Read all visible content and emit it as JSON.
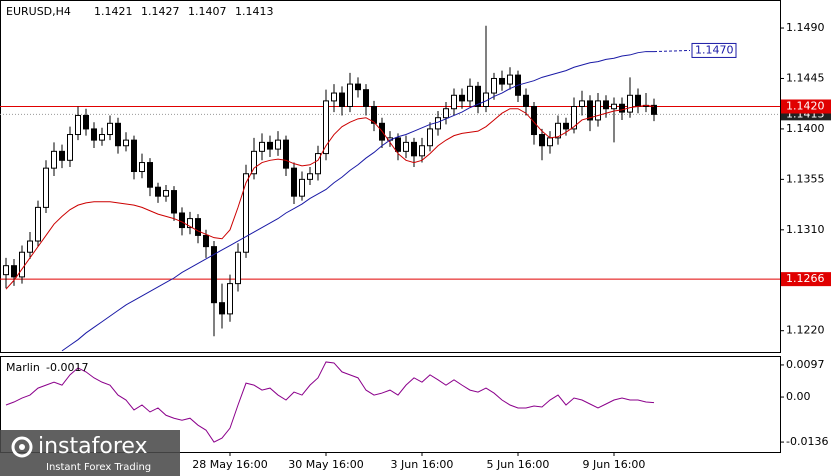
{
  "chart_data": [
    {
      "type": "candlestick",
      "title": "EURUSD,H4",
      "categories": [
        null,
        null,
        null,
        null,
        null,
        null,
        null,
        null,
        null,
        null,
        null,
        null,
        null,
        null,
        null,
        null,
        null,
        null,
        null,
        null,
        null,
        null,
        null,
        null,
        null,
        null,
        null,
        null,
        "28 May 16:00",
        null,
        null,
        null,
        null,
        null,
        null,
        null,
        null,
        null,
        null,
        null,
        "30 May 16:00",
        null,
        null,
        null,
        null,
        null,
        null,
        null,
        null,
        null,
        null,
        null,
        "3 Jun 16:00",
        null,
        null,
        null,
        null,
        null,
        null,
        null,
        null,
        null,
        null,
        null,
        "5 Jun 16:00",
        null,
        null,
        null,
        null,
        null,
        null,
        null,
        null,
        null,
        null,
        null,
        "9 Jun 16:00",
        null,
        null,
        null,
        null,
        null
      ],
      "open": [
        1.127,
        1.1278,
        1.1268,
        1.129,
        1.13,
        1.133,
        1.1365,
        1.138,
        1.1372,
        1.1395,
        1.1412,
        1.14,
        1.139,
        1.1395,
        1.1405,
        1.1385,
        1.139,
        1.1362,
        1.137,
        1.1348,
        1.134,
        1.1345,
        1.1325,
        1.1312,
        1.132,
        1.1305,
        1.1295,
        1.1245,
        1.1235,
        1.1262,
        1.129,
        1.136,
        1.138,
        1.1388,
        1.1382,
        1.139,
        1.1365,
        1.134,
        1.1355,
        1.136,
        1.1378,
        1.1425,
        1.1432,
        1.142,
        1.144,
        1.1435,
        1.142,
        1.1405,
        1.139,
        1.1392,
        1.138,
        1.1388,
        1.1376,
        1.1385,
        1.14,
        1.141,
        1.1418,
        1.143,
        1.1425,
        1.1438,
        1.142,
        1.1432,
        1.1445,
        1.144,
        1.1448,
        1.143,
        1.142,
        1.1395,
        1.1385,
        1.1392,
        1.1405,
        1.14,
        1.142,
        1.1425,
        1.1408,
        1.1425,
        1.1418,
        1.1422,
        1.1415,
        1.143,
        1.142,
        1.1421
      ],
      "high": [
        1.1285,
        1.1284,
        1.1296,
        1.1308,
        1.1336,
        1.1372,
        1.1388,
        1.1386,
        1.1402,
        1.142,
        1.1418,
        1.1406,
        1.1401,
        1.1412,
        1.141,
        1.1397,
        1.1394,
        1.1378,
        1.1374,
        1.1352,
        1.135,
        1.1349,
        1.133,
        1.1326,
        1.1324,
        1.131,
        1.13,
        1.1262,
        1.127,
        1.1298,
        1.1368,
        1.1392,
        1.1396,
        1.1394,
        1.1398,
        1.1394,
        1.137,
        1.1362,
        1.1366,
        1.1385,
        1.1435,
        1.144,
        1.1438,
        1.145,
        1.1446,
        1.144,
        1.1425,
        1.141,
        1.1398,
        1.1396,
        1.1394,
        1.1392,
        1.1392,
        1.1406,
        1.1416,
        1.1424,
        1.1436,
        1.1436,
        1.1445,
        1.1442,
        1.1492,
        1.145,
        1.1452,
        1.1455,
        1.1452,
        1.1436,
        1.1424,
        1.14,
        1.1398,
        1.1412,
        1.141,
        1.1428,
        1.1434,
        1.143,
        1.1432,
        1.143,
        1.1428,
        1.1428,
        1.1446,
        1.1436,
        1.1432,
        1.1427
      ],
      "low": [
        1.1258,
        1.126,
        1.1262,
        1.1284,
        1.1295,
        1.1325,
        1.1358,
        1.1365,
        1.1366,
        1.139,
        1.1394,
        1.1383,
        1.1385,
        1.139,
        1.1378,
        1.138,
        1.1355,
        1.1356,
        1.134,
        1.1334,
        1.1335,
        1.1318,
        1.1305,
        1.1306,
        1.1298,
        1.1285,
        1.1215,
        1.1222,
        1.1228,
        1.1255,
        1.1285,
        1.1355,
        1.1372,
        1.1375,
        1.1376,
        1.1358,
        1.1333,
        1.1336,
        1.135,
        1.1354,
        1.1372,
        1.1415,
        1.1412,
        1.1415,
        1.1428,
        1.1412,
        1.1398,
        1.1383,
        1.1384,
        1.1372,
        1.1374,
        1.1366,
        1.137,
        1.138,
        1.1394,
        1.1404,
        1.1412,
        1.1418,
        1.142,
        1.1414,
        1.1415,
        1.1426,
        1.1434,
        1.1435,
        1.1424,
        1.1412,
        1.1386,
        1.1372,
        1.1378,
        1.1386,
        1.1394,
        1.1396,
        1.1412,
        1.1398,
        1.1402,
        1.141,
        1.1388,
        1.1408,
        1.141,
        1.1414,
        1.1415,
        1.1407
      ],
      "close": [
        1.1278,
        1.1268,
        1.129,
        1.13,
        1.133,
        1.1365,
        1.138,
        1.1372,
        1.1395,
        1.1412,
        1.14,
        1.139,
        1.1395,
        1.1405,
        1.1385,
        1.139,
        1.1362,
        1.137,
        1.1348,
        1.134,
        1.1345,
        1.1325,
        1.1312,
        1.132,
        1.1305,
        1.1295,
        1.1245,
        1.1235,
        1.1262,
        1.129,
        1.136,
        1.138,
        1.1388,
        1.1382,
        1.139,
        1.1365,
        1.134,
        1.1355,
        1.136,
        1.1378,
        1.1425,
        1.1432,
        1.142,
        1.144,
        1.1435,
        1.142,
        1.1405,
        1.139,
        1.1392,
        1.138,
        1.1388,
        1.1376,
        1.1385,
        1.14,
        1.141,
        1.1418,
        1.143,
        1.1425,
        1.1438,
        1.142,
        1.1432,
        1.1445,
        1.144,
        1.1448,
        1.143,
        1.142,
        1.1395,
        1.1385,
        1.1392,
        1.1405,
        1.14,
        1.142,
        1.1425,
        1.1408,
        1.1425,
        1.1418,
        1.1422,
        1.1415,
        1.143,
        1.142,
        1.1421,
        1.1413
      ],
      "series": [
        {
          "color": "#cc0000",
          "values": [
            1.1257,
            1.1265,
            1.1275,
            1.1285,
            1.1295,
            1.1305,
            1.1315,
            1.1322,
            1.1328,
            1.1332,
            1.1334,
            1.1335,
            1.1335,
            1.1335,
            1.1334,
            1.1333,
            1.1332,
            1.133,
            1.1327,
            1.1324,
            1.1322,
            1.132,
            1.1317,
            1.1313,
            1.1309,
            1.1306,
            1.1303,
            1.1302,
            1.131,
            1.133,
            1.1352,
            1.1365,
            1.137,
            1.1372,
            1.1373,
            1.1372,
            1.1369,
            1.1367,
            1.1368,
            1.1372,
            1.1385,
            1.1395,
            1.1402,
            1.1406,
            1.1409,
            1.141,
            1.1406,
            1.1398,
            1.1388,
            1.1378,
            1.1372,
            1.137,
            1.1372,
            1.1378,
            1.1385,
            1.139,
            1.1394,
            1.1396,
            1.1397,
            1.1398,
            1.1402,
            1.1408,
            1.1414,
            1.1418,
            1.1418,
            1.1414,
            1.1406,
            1.1398,
            1.1392,
            1.1393,
            1.1397,
            1.1402,
            1.1408,
            1.141,
            1.1412,
            1.1414,
            1.1416,
            1.1417,
            1.1419,
            1.142,
            1.1421,
            1.142
          ]
        },
        {
          "color": "#1a1aa6",
          "values": [
            null,
            null,
            null,
            null,
            null,
            null,
            null,
            1.1202,
            1.1207,
            1.1212,
            1.1218,
            1.1223,
            1.1228,
            1.1233,
            1.1238,
            1.1243,
            1.1247,
            1.1251,
            1.1255,
            1.1259,
            1.1263,
            1.1267,
            1.1272,
            1.1276,
            1.128,
            1.1284,
            1.1288,
            1.1292,
            1.1296,
            1.13,
            1.1304,
            1.1308,
            1.1312,
            1.1316,
            1.132,
            1.1325,
            1.1329,
            1.1333,
            1.1338,
            1.1342,
            1.1346,
            1.1352,
            1.1357,
            1.1363,
            1.1368,
            1.1374,
            1.1379,
            1.1385,
            1.139,
            1.1393,
            1.1395,
            1.1398,
            1.1401,
            1.1404,
            1.1406,
            1.1409,
            1.1412,
            1.1415,
            1.1419,
            1.1422,
            1.1425,
            1.1429,
            1.1432,
            1.1436,
            1.1439,
            1.1441,
            1.1443,
            1.1446,
            1.1448,
            1.145,
            1.1452,
            1.1455,
            1.1457,
            1.1459,
            1.146,
            1.1462,
            1.1463,
            1.1465,
            1.1466,
            1.1468,
            1.1469,
            1.1469
          ]
        }
      ],
      "hlines": [
        {
          "value": 1.142,
          "label": "1.1420",
          "color": "#e00000"
        },
        {
          "value": 1.1266,
          "label": "1.1266",
          "color": "#e00000"
        }
      ],
      "bid": {
        "value": 1.1413,
        "label": "1.1413"
      },
      "projection": {
        "value": 1.147,
        "label": "1.1470",
        "color": "#1a1aa6"
      },
      "ylim": [
        1.1201,
        1.1515
      ],
      "yticks": [
        {
          "value": 1.149,
          "label": "1.1490"
        },
        {
          "value": 1.1445,
          "label": "1.1445"
        },
        {
          "value": 1.14,
          "label": "1.1400"
        },
        {
          "value": 1.1355,
          "label": "1.1355"
        },
        {
          "value": 1.131,
          "label": "1.1310"
        },
        {
          "value": 1.122,
          "label": "1.1220"
        }
      ]
    },
    {
      "type": "line",
      "title": "Marlin",
      "color": "#8b008b",
      "values": [
        -0.0024,
        -0.0015,
        -0.0003,
        0.0006,
        0.0027,
        0.0036,
        0.0045,
        0.0036,
        0.0067,
        0.0088,
        0.0076,
        0.0058,
        0.0045,
        0.0036,
        0.0006,
        -0.0009,
        -0.0039,
        -0.0024,
        -0.0045,
        -0.0033,
        -0.0055,
        -0.0064,
        -0.007,
        -0.0064,
        -0.0085,
        -0.01,
        -0.0136,
        -0.0124,
        -0.0094,
        -0.0024,
        0.0042,
        0.0036,
        0.0021,
        0.0027,
        0.0006,
        -0.0009,
        0.0015,
        0.0006,
        0.0036,
        0.0058,
        0.0106,
        0.0103,
        0.0076,
        0.0067,
        0.0058,
        0.0021,
        0.0006,
        0.0012,
        0.0021,
        0.0006,
        0.0036,
        0.0058,
        0.0045,
        0.0067,
        0.0052,
        0.0036,
        0.0052,
        0.0036,
        0.0021,
        0.0015,
        0.0027,
        0.0012,
        -0.0009,
        -0.0024,
        -0.0033,
        -0.0033,
        -0.0027,
        -0.003,
        -0.0009,
        0.0006,
        -0.0024,
        -0.0003,
        -0.0009,
        -0.0021,
        -0.0033,
        -0.0021,
        -0.0009,
        -0.0003,
        -0.0009,
        -0.0009,
        -0.0015,
        -0.0017
      ],
      "ylim": [
        -0.0166,
        0.0124
      ],
      "yticks": [
        0.0097,
        {
          "value": 0,
          "label": "0.00"
        },
        -0.0136
      ]
    }
  ],
  "logo": {
    "name": "instaforex",
    "tagline": "Instant Forex Trading"
  }
}
